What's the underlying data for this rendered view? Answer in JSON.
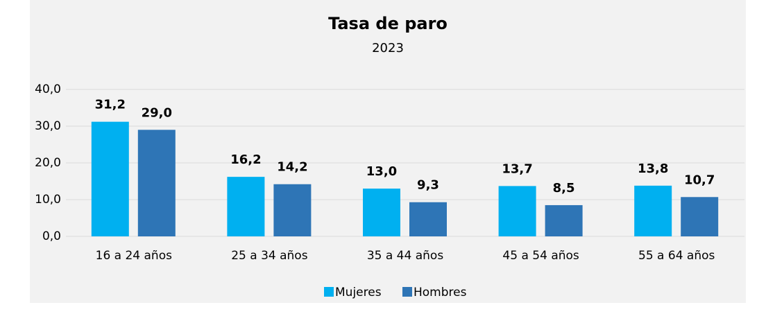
{
  "chart_data": {
    "type": "bar",
    "title": "Tasa de paro",
    "subtitle": "2023",
    "categories": [
      "16 a 24 años",
      "25 a 34 años",
      "35 a 44 años",
      "45 a 54 años",
      "55 a 64 años"
    ],
    "series": [
      {
        "name": "Mujeres",
        "color": "#00b0f0",
        "values": [
          31.2,
          16.2,
          13.0,
          13.7,
          13.8
        ],
        "value_labels": [
          "31,2",
          "16,2",
          "13,0",
          "13,7",
          "13,8"
        ]
      },
      {
        "name": "Hombres",
        "color": "#2e75b6",
        "values": [
          29.0,
          14.2,
          9.3,
          8.5,
          10.7
        ],
        "value_labels": [
          "29,0",
          "14,2",
          "9,3",
          "8,5",
          "10,7"
        ]
      }
    ],
    "ylim": [
      0,
      40
    ],
    "yticks": [
      {
        "value": 0,
        "label": "0,0"
      },
      {
        "value": 10,
        "label": "10,0"
      },
      {
        "value": 20,
        "label": "20,0"
      },
      {
        "value": 30,
        "label": "30,0"
      },
      {
        "value": 40,
        "label": "40,0"
      }
    ],
    "grid": true,
    "legend": "bottom"
  }
}
